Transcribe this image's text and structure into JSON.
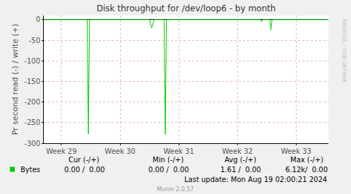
{
  "chart_data": {
    "type": "line",
    "title": "Disk throughput for /dev/loop6 - by month",
    "y_label": "Pr second read (-) / write (+)",
    "x": [
      28.7,
      29.44,
      29.46,
      29.48,
      30.5,
      30.54,
      30.58,
      30.75,
      30.77,
      30.79,
      32.39,
      32.41,
      32.43,
      32.55,
      32.57,
      32.59,
      33.55
    ],
    "series": [
      {
        "name": "Bytes",
        "color": "#00cc00",
        "values": [
          0,
          0,
          -278,
          0,
          0,
          -20,
          0,
          0,
          -278,
          0,
          0,
          -5,
          0,
          0,
          -25,
          0,
          0
        ]
      }
    ],
    "xlim": [
      28.7,
      33.55
    ],
    "xticks": [
      {
        "value": 29,
        "label": "Week 29"
      },
      {
        "value": 30,
        "label": "Week 30"
      },
      {
        "value": 31,
        "label": "Week 31"
      },
      {
        "value": 32,
        "label": "Week 32"
      },
      {
        "value": 33,
        "label": "Week 33"
      }
    ],
    "ylim": [
      -300,
      10
    ],
    "yticks": [
      -300,
      -250,
      -200,
      -150,
      -100,
      -50,
      0
    ],
    "grid": true,
    "legend_table": {
      "headers": [
        "Cur (-/+)",
        "Min (-/+)",
        "Avg (-/+)",
        "Max (-/+)"
      ],
      "rows": [
        {
          "name": "Bytes",
          "values": [
            "0.00 /  0.00",
            "0.00 /  0.00",
            "1.61 /  0.00",
            "6.12k/  0.00"
          ]
        }
      ]
    },
    "last_update": "Last update: Mon Aug 19 02:00:21 2024",
    "footer": "Munin 2.0.57",
    "side_text": "RRDTOOL / TOBI OETIKER"
  }
}
